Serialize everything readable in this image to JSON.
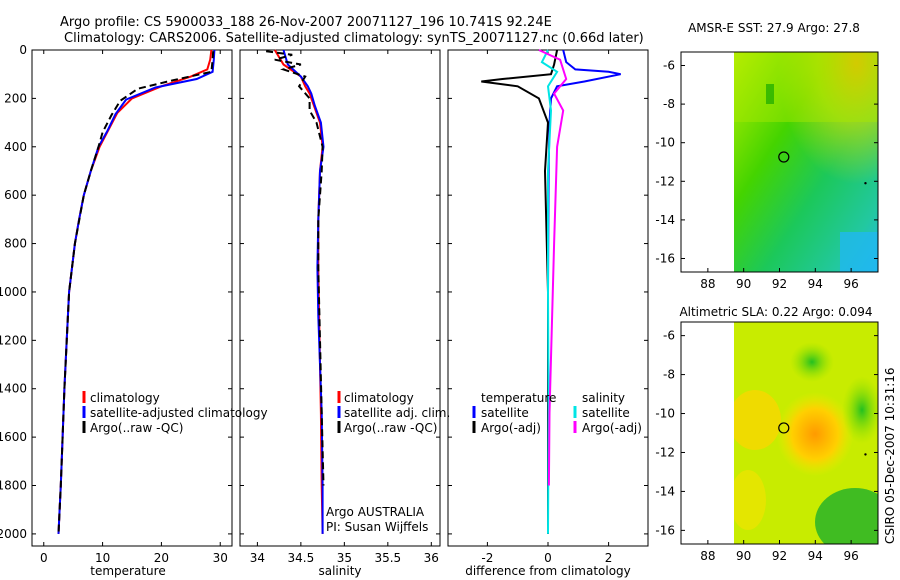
{
  "header": {
    "line1": "Argo profile: CS 5900033_188 26-Nov-2007 20071127_196 10.741S 92.24E",
    "line2": "Climatology: CARS2006. Satellite-adjusted climatology: synTS_20071127.nc (0.66d later)"
  },
  "side_stamp": "CSIRO 05-Dec-2007 10:31:16",
  "colors": {
    "climatology": "#ff0000",
    "satellite": "#0000ff",
    "argo": "#000000",
    "sat_diff": "#00e5e5",
    "argo_diff": "#ff00ff"
  },
  "chart_data": [
    {
      "type": "line",
      "id": "temperature",
      "xlabel": "temperature",
      "ylabel": "",
      "xlim": [
        -2,
        32
      ],
      "ylim": [
        2050,
        0
      ],
      "xticks": [
        0,
        10,
        20,
        30
      ],
      "yticks": [
        0,
        200,
        400,
        600,
        800,
        1000,
        1200,
        1400,
        1600,
        1800,
        2000
      ],
      "legend": [
        "climatology",
        "satellite-adjusted climatology",
        "Argo(..raw -QC)"
      ],
      "legend_placement": "lower-center",
      "series": [
        {
          "name": "climatology",
          "style": "solid",
          "color": "#ff0000",
          "x": [
            28.5,
            28.3,
            27.8,
            25.0,
            20.0,
            15.0,
            12.5,
            11.0,
            9.5,
            8.0,
            6.8,
            6.0,
            5.3,
            4.8,
            4.3,
            3.9,
            3.5,
            3.2,
            2.9,
            2.7,
            2.5
          ],
          "y": [
            0,
            40,
            80,
            110,
            150,
            200,
            260,
            330,
            400,
            500,
            600,
            700,
            800,
            900,
            1000,
            1200,
            1400,
            1600,
            1800,
            1900,
            2000
          ]
        },
        {
          "name": "satellite-adjusted climatology",
          "style": "solid",
          "color": "#0000ff",
          "x": [
            29.0,
            28.9,
            28.7,
            26.0,
            19.0,
            14.0,
            12.2,
            10.8,
            9.3,
            8.0,
            6.8,
            6.0,
            5.3,
            4.8,
            4.3,
            3.9,
            3.5,
            3.2,
            2.9,
            2.7,
            2.5
          ],
          "y": [
            0,
            40,
            90,
            120,
            155,
            205,
            265,
            335,
            400,
            500,
            600,
            700,
            800,
            900,
            1000,
            1200,
            1400,
            1600,
            1800,
            1900,
            2000
          ]
        },
        {
          "name": "Argo(..raw -QC)",
          "style": "dashed",
          "color": "#000000",
          "x": [
            28.8,
            28.7,
            28.5,
            22.0,
            16.0,
            13.0,
            11.5,
            10.0,
            9.3,
            8.0,
            6.8,
            5.3,
            4.3,
            3.5,
            2.9,
            2.5
          ],
          "y": [
            5,
            40,
            90,
            125,
            160,
            210,
            270,
            340,
            400,
            500,
            600,
            800,
            1000,
            1400,
            1800,
            2000
          ]
        }
      ]
    },
    {
      "type": "line",
      "id": "salinity",
      "xlabel": "salinity",
      "xlim": [
        33.8,
        36.1
      ],
      "ylim": [
        2050,
        0
      ],
      "xticks": [
        34,
        34.5,
        35,
        35.5,
        36
      ],
      "legend": [
        "climatology",
        "satellite adj. clim.",
        "Argo(..raw -QC)"
      ],
      "legend_placement": "lower-center",
      "annotation": [
        "Argo AUSTRALIA",
        "PI: Susan Wijffels"
      ],
      "series": [
        {
          "name": "climatology",
          "style": "solid",
          "color": "#ff0000",
          "x": [
            34.2,
            34.3,
            34.5,
            34.55,
            34.6,
            34.65,
            34.72,
            34.75,
            34.72,
            34.7,
            34.7,
            34.71,
            34.72,
            34.73,
            34.74,
            34.75
          ],
          "y": [
            0,
            60,
            110,
            150,
            180,
            230,
            300,
            400,
            500,
            700,
            900,
            1100,
            1300,
            1500,
            1800,
            2000
          ]
        },
        {
          "name": "satellite adj. clim.",
          "style": "solid",
          "color": "#0000ff",
          "x": [
            34.3,
            34.35,
            34.5,
            34.58,
            34.62,
            34.66,
            34.73,
            34.76,
            34.72,
            34.7,
            34.69,
            34.7,
            34.72,
            34.74,
            34.75,
            34.75
          ],
          "y": [
            0,
            60,
            110,
            150,
            180,
            230,
            300,
            400,
            500,
            700,
            900,
            1100,
            1300,
            1500,
            1800,
            2000
          ]
        },
        {
          "name": "Argo(..raw -QC)",
          "style": "dashed",
          "color": "#000000",
          "x": [
            34.1,
            34.4,
            34.2,
            34.5,
            34.3,
            34.55,
            34.48,
            34.6,
            34.6,
            34.68,
            34.75,
            34.74,
            34.7,
            34.7,
            34.72,
            34.74,
            34.76
          ],
          "y": [
            5,
            20,
            40,
            60,
            80,
            110,
            150,
            200,
            250,
            300,
            400,
            500,
            700,
            900,
            1200,
            1500,
            1800
          ]
        }
      ]
    },
    {
      "type": "line",
      "id": "difference",
      "xlabel": "difference from climatology",
      "xlim": [
        -3.3,
        3.3
      ],
      "ylim": [
        2050,
        0
      ],
      "xticks": [
        -2,
        0,
        2
      ],
      "legend_columns": [
        {
          "heading": "temperature",
          "items": [
            "satellite",
            "Argo(-adj)"
          ]
        },
        {
          "heading": "salinity",
          "items": [
            "satellite",
            "Argo(-adj)"
          ]
        }
      ],
      "legend_placement": "lower-center",
      "series": [
        {
          "name": "temperature satellite",
          "style": "solid",
          "color": "#0000ff",
          "x": [
            0.5,
            0.6,
            0.9,
            2.0,
            2.4,
            1.2,
            0.3,
            0.1,
            0.05,
            0.02,
            0.0,
            0.0
          ],
          "y": [
            0,
            50,
            80,
            90,
            100,
            130,
            150,
            200,
            300,
            500,
            1000,
            2000
          ]
        },
        {
          "name": "temperature Argo(-adj)",
          "style": "solid",
          "color": "#000000",
          "x": [
            0.3,
            0.2,
            0.1,
            -1.5,
            -2.2,
            -1.0,
            -0.3,
            0.0,
            -0.1,
            0.0,
            0.0,
            0.0
          ],
          "y": [
            0,
            60,
            100,
            120,
            130,
            150,
            200,
            300,
            500,
            1000,
            1500,
            2000
          ]
        },
        {
          "name": "salinity satellite",
          "style": "solid",
          "color": "#00e5e5",
          "x": [
            0.0,
            -0.2,
            0.3,
            0.0,
            0.1,
            0.0,
            0.0,
            0.02,
            0.0
          ],
          "y": [
            0,
            50,
            90,
            150,
            250,
            500,
            1000,
            1500,
            2000
          ]
        },
        {
          "name": "salinity Argo(-adj)",
          "style": "solid",
          "color": "#ff00ff",
          "x": [
            -0.3,
            0.4,
            0.6,
            0.2,
            0.5,
            0.3,
            0.2,
            0.05,
            0.03
          ],
          "y": [
            0,
            40,
            120,
            180,
            250,
            400,
            800,
            1500,
            1800
          ]
        }
      ]
    },
    {
      "type": "heatmap",
      "id": "sst_map",
      "title": "AMSR-E SST: 27.9 Argo: 27.8",
      "xlim": [
        86.5,
        97.5
      ],
      "ylim": [
        -16.7,
        -5.3
      ],
      "xticks": [
        88,
        90,
        92,
        94,
        96
      ],
      "yticks": [
        -6,
        -8,
        -10,
        -12,
        -14,
        -16
      ],
      "marker": {
        "lon": 92.24,
        "lat": -10.741
      }
    },
    {
      "type": "heatmap",
      "id": "sla_map",
      "title": "Altimetric SLA: 0.22 Argo: 0.094",
      "xlim": [
        86.5,
        97.5
      ],
      "ylim": [
        -16.7,
        -5.3
      ],
      "xticks": [
        88,
        90,
        92,
        94,
        96
      ],
      "yticks": [
        -6,
        -8,
        -10,
        -12,
        -14,
        -16
      ],
      "marker": {
        "lon": 92.24,
        "lat": -10.741
      }
    }
  ]
}
